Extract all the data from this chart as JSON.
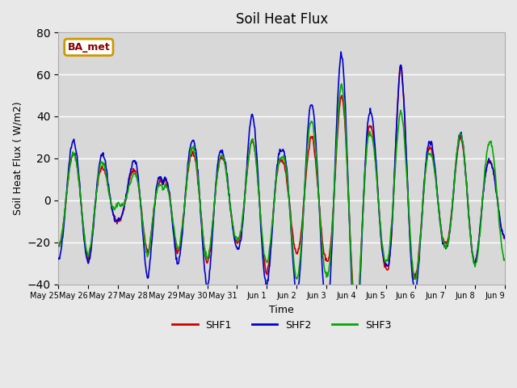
{
  "title": "Soil Heat Flux",
  "xlabel": "Time",
  "ylabel": "Soil Heat Flux ( W/m2)",
  "ylim": [
    -40,
    80
  ],
  "yticks": [
    -40,
    -20,
    0,
    20,
    40,
    60,
    80
  ],
  "background_color": "#e8e8e8",
  "plot_bg_color": "#d8d8d8",
  "grid_color": "#ffffff",
  "line_colors": {
    "SHF1": "#cc0000",
    "SHF2": "#0000cc",
    "SHF3": "#00aa00"
  },
  "line_width": 1.2,
  "legend_label": "BA_met",
  "legend_box_color": "#cc9900",
  "legend_text_color": "#880000",
  "start_day": 0,
  "num_points": 840,
  "tick_labels": [
    "May 25",
    "May 26",
    "May 27",
    "May 28",
    "May 29",
    "May 30",
    "May 31",
    "Jun 1",
    "Jun 2",
    "Jun 3",
    "Jun 4",
    "Jun 5",
    "Jun 6",
    "Jun 7",
    "Jun 8",
    "Jun 9"
  ],
  "tick_positions": [
    0,
    60,
    120,
    180,
    240,
    300,
    360,
    420,
    480,
    540,
    600,
    660,
    720,
    780,
    840,
    900
  ]
}
